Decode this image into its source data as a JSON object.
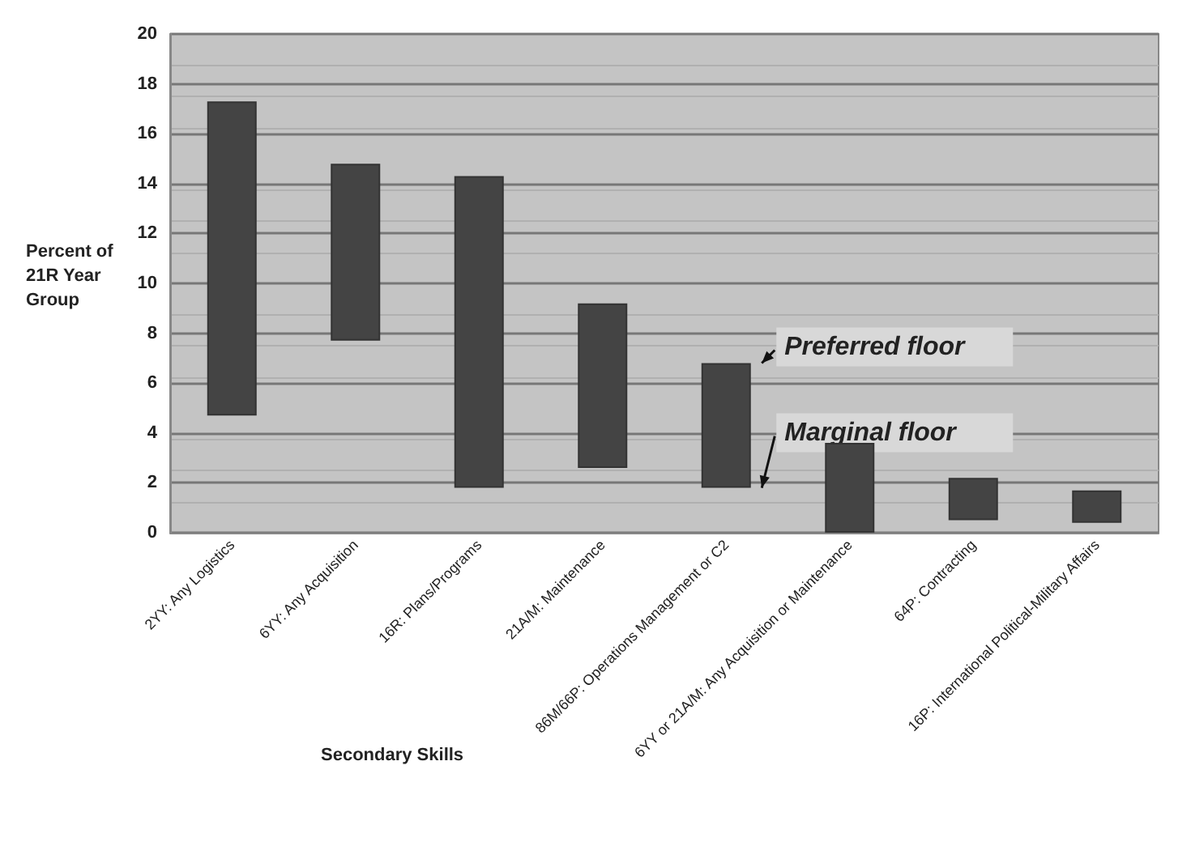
{
  "chart_data": {
    "type": "bar",
    "ylabel": "Percent of 21R Year Group",
    "xlabel": "Secondary Skills",
    "categories": [
      "2YY: Any Logistics",
      "6YY: Any Acquisition",
      "16R: Plans/Programs",
      "21A/M: Maintenance",
      "86M/66P: Operations Management or C2",
      "6YY or 21A/M: Any Acquisition or Maintenance",
      "64P: Contracting",
      "16P: International Political-Military Affairs"
    ],
    "base": [
      4.7,
      7.7,
      1.8,
      2.6,
      1.8,
      0,
      0.5,
      0.4
    ],
    "values": [
      12.6,
      7.1,
      12.5,
      6.6,
      5.0,
      3.6,
      1.7,
      1.3
    ],
    "color": "#444444",
    "ylim": [
      0,
      20
    ],
    "yticks": [
      0,
      2,
      4,
      6,
      8,
      10,
      12,
      14,
      16,
      18,
      20
    ],
    "grid": "y",
    "annotations": [
      {
        "text": "Preferred floor",
        "x": "86M/66P: Operations Management or C2",
        "y": 6.8
      },
      {
        "text": "Marginal floor",
        "x": "86M/66P: Operations Management or C2",
        "y": 1.8
      }
    ]
  }
}
